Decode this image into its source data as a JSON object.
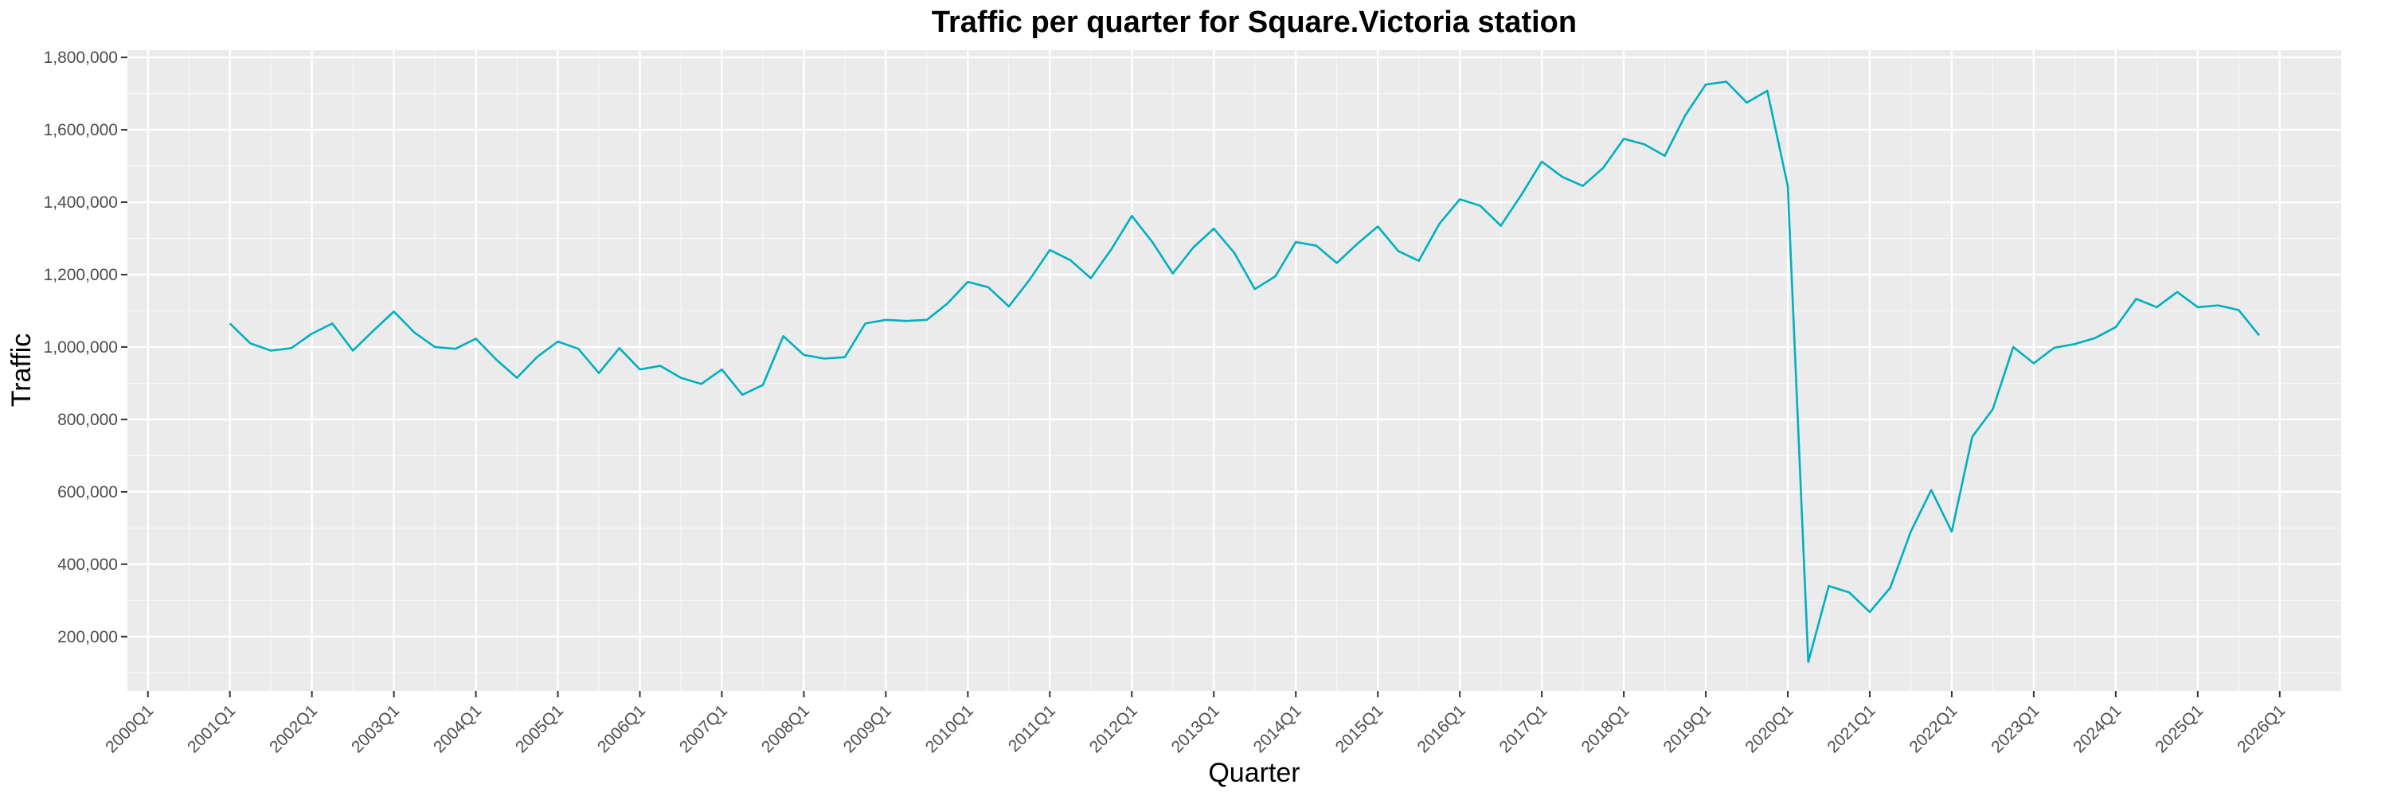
{
  "chart_data": {
    "type": "line",
    "title": "Traffic per quarter for Square.Victoria station",
    "xlabel": "Quarter",
    "ylabel": "Traffic",
    "x_ticks": [
      "2000Q1",
      "2001Q1",
      "2002Q1",
      "2003Q1",
      "2004Q1",
      "2005Q1",
      "2006Q1",
      "2007Q1",
      "2008Q1",
      "2009Q1",
      "2010Q1",
      "2011Q1",
      "2012Q1",
      "2013Q1",
      "2014Q1",
      "2015Q1",
      "2016Q1",
      "2017Q1",
      "2018Q1",
      "2019Q1",
      "2020Q1",
      "2021Q1",
      "2022Q1",
      "2023Q1",
      "2024Q1",
      "2025Q1",
      "2026Q1"
    ],
    "y_ticks": [
      "200,000",
      "400,000",
      "600,000",
      "800,000",
      "1,000,000",
      "1,200,000",
      "1,400,000",
      "1,600,000",
      "1,800,000"
    ],
    "ylim": [
      50000,
      1820000
    ],
    "xlim": [
      "1999Q4",
      "2026Q4"
    ],
    "grid": true,
    "background": "#ebebeb",
    "line_color": "#00b0c0",
    "series": [
      {
        "start_quarter": "2001Q1",
        "values": [
          1065000,
          1010000,
          990000,
          997000,
          1037000,
          1065000,
          990000,
          1045000,
          1098000,
          1040000,
          1000000,
          995000,
          1023000,
          965000,
          915000,
          973000,
          1015000,
          995000,
          928000,
          997000,
          938000,
          948000,
          915000,
          898000,
          938000,
          868000,
          895000,
          1030000,
          978000,
          968000,
          972000,
          1065000,
          1075000,
          1072000,
          1075000,
          1120000,
          1180000,
          1165000,
          1112000,
          1185000,
          1268000,
          1240000,
          1190000,
          1270000,
          1362000,
          1290000,
          1203000,
          1275000,
          1327000,
          1260000,
          1160000,
          1195000,
          1290000,
          1280000,
          1232000,
          1285000,
          1333000,
          1265000,
          1238000,
          1340000,
          1408000,
          1390000,
          1335000,
          1420000,
          1512000,
          1470000,
          1445000,
          1495000,
          1575000,
          1560000,
          1528000,
          1640000,
          1725000,
          1733000,
          1675000,
          1708000,
          1445000,
          130000,
          340000,
          322000,
          268000,
          335000,
          490000,
          605000,
          490000,
          752000,
          828000,
          1000000,
          955000,
          998000,
          1008000,
          1025000,
          1055000,
          1133000,
          1110000,
          1152000,
          1110000,
          1115000,
          1102000,
          1032000
        ]
      }
    ]
  }
}
